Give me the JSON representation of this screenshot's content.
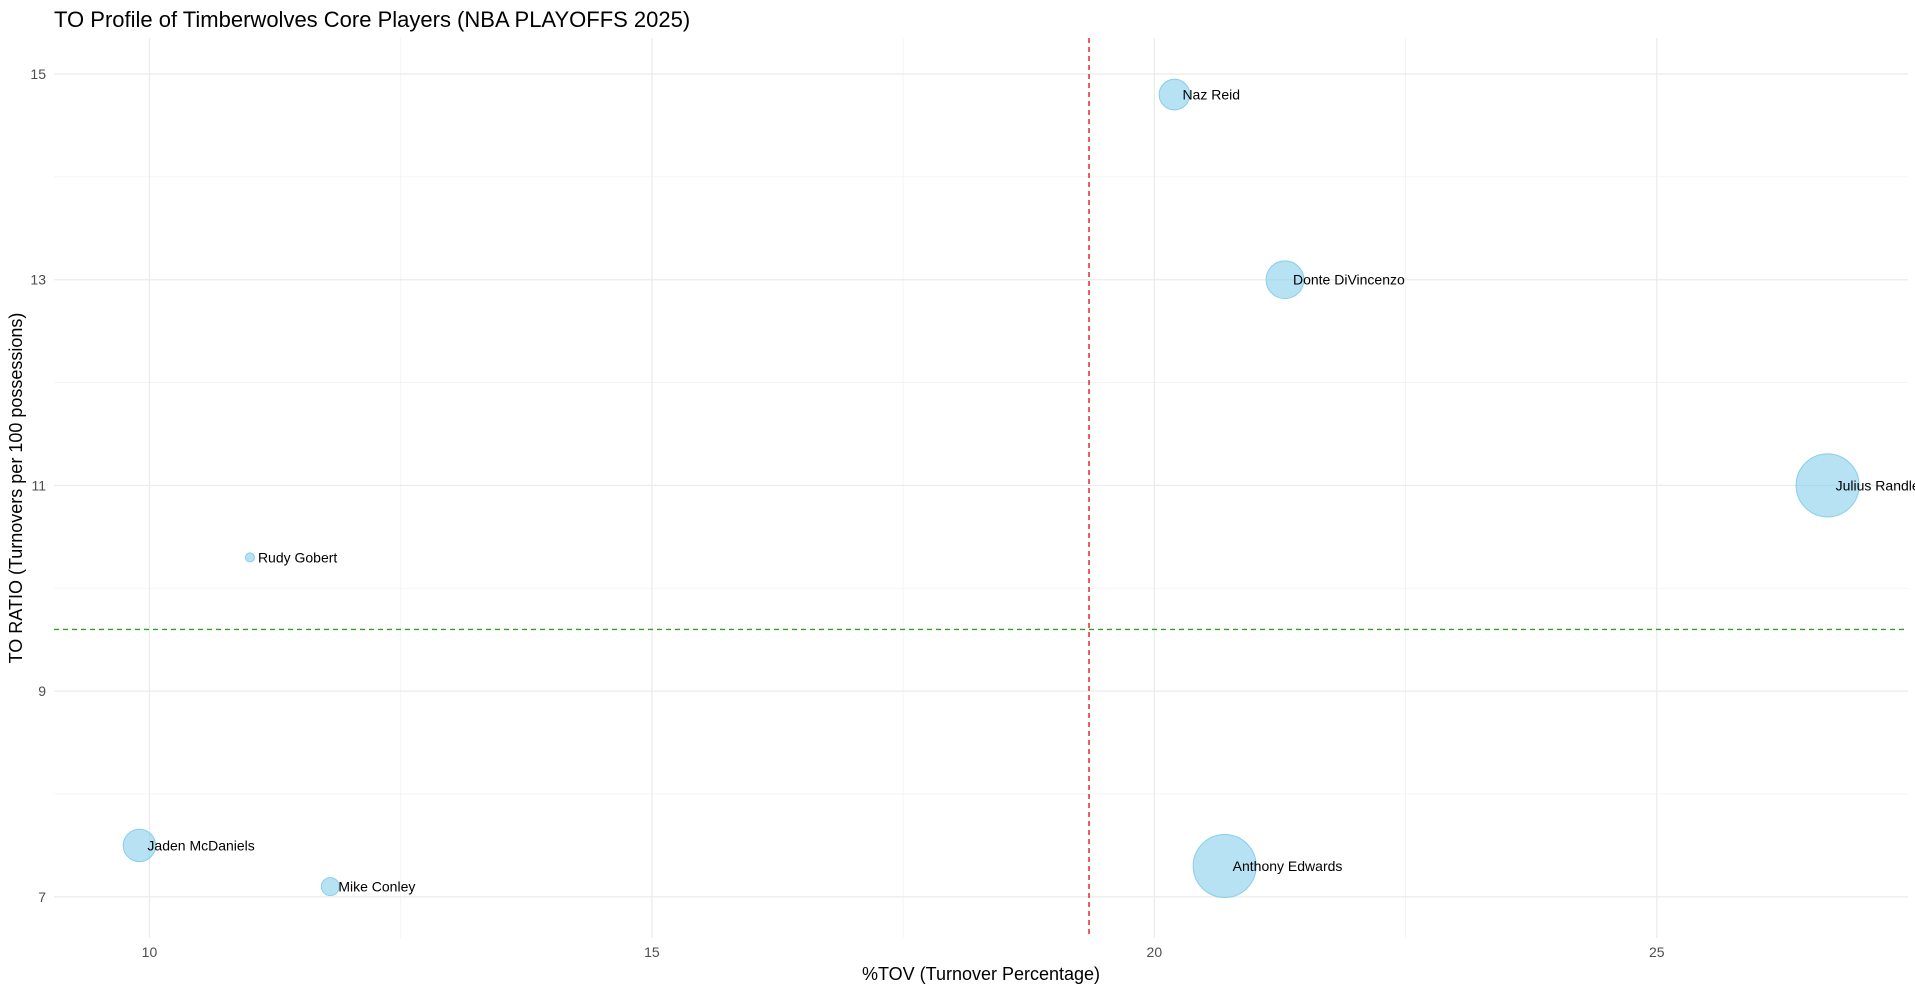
{
  "chart_data": {
    "type": "scatter",
    "title": "TO Profile of Timberwolves Core Players (NBA PLAYOFFS 2025)",
    "xlabel": "%TOV (Turnover Percentage)",
    "ylabel": "TO RATIO (Turnovers per 100 possessions)",
    "xlim": [
      9.05,
      27.5
    ],
    "ylim": [
      6.6,
      15.35
    ],
    "x_ticks": [
      10,
      15,
      20,
      25
    ],
    "y_ticks": [
      7,
      9,
      11,
      13,
      15
    ],
    "x_minor_ticks": [
      12.5,
      17.5,
      22.5
    ],
    "y_minor_ticks": [
      8,
      10,
      12,
      14
    ],
    "grid": true,
    "point_color": "#87ceeb",
    "point_opacity": 0.6,
    "reference_lines": [
      {
        "orientation": "vertical",
        "value": 19.35,
        "color": "#e31a1c",
        "style": "dashed"
      },
      {
        "orientation": "horizontal",
        "value": 9.6,
        "color": "#33a02c",
        "style": "dashed"
      }
    ],
    "points": [
      {
        "label": "Naz Reid",
        "x": 20.2,
        "y": 14.8,
        "size": 3.4
      },
      {
        "label": "Donte DiVincenzo",
        "x": 21.3,
        "y": 13.0,
        "size": 4.2
      },
      {
        "label": "Julius Randle",
        "x": 26.7,
        "y": 11.0,
        "size": 7.0
      },
      {
        "label": "Rudy Gobert",
        "x": 11.0,
        "y": 10.3,
        "size": 1.0
      },
      {
        "label": "Jaden McDaniels",
        "x": 9.9,
        "y": 7.5,
        "size": 3.6
      },
      {
        "label": "Mike Conley",
        "x": 11.8,
        "y": 7.1,
        "size": 2.0
      },
      {
        "label": "Anthony Edwards",
        "x": 20.7,
        "y": 7.3,
        "size": 7.0
      }
    ]
  }
}
